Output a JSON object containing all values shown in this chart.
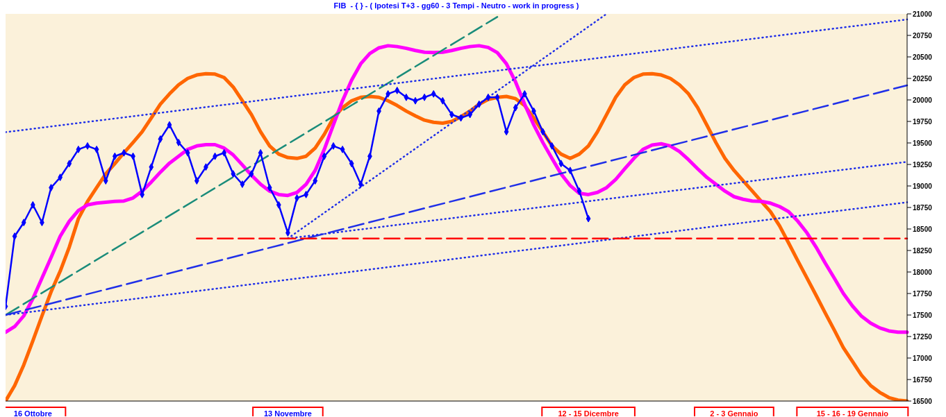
{
  "chart_data": {
    "type": "line",
    "title": "FIB  - { } - ( Ipotesi T+3 - gg60 - 3 Tempi - Neutro - work in progress )",
    "categories": [
      null,
      null,
      null,
      "16 Ottobre",
      null,
      null,
      null,
      null,
      null,
      null,
      null,
      null,
      null,
      null,
      null,
      null,
      null,
      null,
      null,
      null,
      null,
      null,
      null,
      null,
      null,
      null,
      null,
      null,
      null,
      null,
      null,
      "13 Novembre",
      null,
      null,
      null,
      null,
      null,
      null,
      null,
      null,
      null,
      null,
      null,
      null,
      null,
      null,
      null,
      null,
      null,
      null,
      null,
      null,
      null,
      null,
      null,
      null,
      null,
      null,
      null,
      null,
      null,
      null,
      null,
      null,
      "12 - 15 Dicembre",
      null,
      null,
      null,
      null,
      null,
      null,
      null,
      null,
      null,
      null,
      null,
      null,
      null,
      null,
      null,
      "2 - 3 Gennaio",
      null,
      null,
      null,
      null,
      null,
      null,
      null,
      null,
      null,
      null,
      null,
      null,
      "15 - 16 - 19 Gennaio",
      null,
      null,
      null,
      null,
      null,
      null
    ],
    "ylim": [
      16500,
      21000
    ],
    "yticks": [
      16500,
      16750,
      17000,
      17250,
      17500,
      17750,
      18000,
      18250,
      18500,
      18750,
      19000,
      19250,
      19500,
      19750,
      20000,
      20250,
      20500,
      20750,
      21000
    ],
    "grid": false,
    "legend": false,
    "series": [
      {
        "type": "line",
        "color": "#ff6600",
        "line_style": "solid",
        "marker": "none",
        "values": [
          16500,
          16680,
          16920,
          17200,
          17490,
          17770,
          18010,
          18290,
          18620,
          18820,
          18980,
          19140,
          19260,
          19385,
          19505,
          19630,
          19790,
          19950,
          20070,
          20175,
          20250,
          20290,
          20305,
          20300,
          20260,
          20150,
          19990,
          19830,
          19630,
          19465,
          19370,
          19330,
          19320,
          19345,
          19440,
          19600,
          19790,
          19910,
          19990,
          20030,
          20040,
          20030,
          19990,
          19935,
          19870,
          19815,
          19765,
          19740,
          19730,
          19750,
          19805,
          19870,
          19950,
          20005,
          20030,
          20040,
          20015,
          19935,
          19790,
          19630,
          19465,
          19370,
          19320,
          19370,
          19465,
          19630,
          19830,
          20030,
          20175,
          20260,
          20300,
          20305,
          20290,
          20250,
          20175,
          20070,
          19910,
          19710,
          19505,
          19320,
          19180,
          19060,
          18940,
          18820,
          18700,
          18535,
          18335,
          18130,
          17930,
          17730,
          17525,
          17325,
          17120,
          16960,
          16800,
          16680,
          16600,
          16540,
          16510,
          16500
        ]
      },
      {
        "type": "line",
        "color": "#ff00ff",
        "line_style": "solid",
        "marker": "none",
        "values": [
          17300,
          17365,
          17490,
          17690,
          17930,
          18170,
          18415,
          18590,
          18715,
          18780,
          18800,
          18810,
          18820,
          18825,
          18860,
          18940,
          19045,
          19160,
          19265,
          19345,
          19425,
          19465,
          19480,
          19480,
          19440,
          19360,
          19245,
          19125,
          19020,
          18940,
          18900,
          18890,
          18925,
          19020,
          19180,
          19425,
          19710,
          19990,
          20230,
          20420,
          20540,
          20605,
          20630,
          20620,
          20600,
          20575,
          20555,
          20550,
          20555,
          20575,
          20600,
          20620,
          20630,
          20610,
          20550,
          20420,
          20210,
          19950,
          19710,
          19505,
          19320,
          19140,
          19005,
          18915,
          18900,
          18925,
          18980,
          19075,
          19200,
          19320,
          19425,
          19475,
          19490,
          19465,
          19400,
          19305,
          19200,
          19100,
          19020,
          18940,
          18875,
          18845,
          18825,
          18820,
          18800,
          18760,
          18700,
          18590,
          18455,
          18290,
          18105,
          17930,
          17750,
          17605,
          17485,
          17405,
          17350,
          17315,
          17300,
          17300
        ]
      },
      {
        "type": "line",
        "color": "#1a8c7a",
        "line_style": "dashed",
        "marker": "none",
        "values": [
          17500,
          null,
          null,
          null,
          null,
          null,
          null,
          null,
          null,
          null,
          null,
          null,
          null,
          null,
          null,
          null,
          null,
          null,
          null,
          null,
          null,
          null,
          null,
          null,
          null,
          null,
          null,
          null,
          null,
          null,
          null,
          null,
          null,
          null,
          null,
          null,
          null,
          null,
          null,
          null,
          null,
          null,
          null,
          null,
          null,
          null,
          null,
          null,
          null,
          null,
          null,
          null,
          null,
          null,
          20965,
          null,
          null,
          null,
          null,
          null,
          null,
          null,
          null,
          null,
          null,
          null,
          null,
          null,
          null,
          null,
          null,
          null,
          null,
          null,
          null,
          null,
          null,
          null,
          null,
          null,
          null,
          null,
          null,
          null,
          null,
          null,
          null,
          null,
          null,
          null,
          null,
          null,
          null,
          null,
          null,
          null,
          null,
          null,
          null,
          null
        ]
      },
      {
        "type": "line",
        "color": "#1f2fe8",
        "line_style": "dashed",
        "marker": "none",
        "values": [
          17500,
          null,
          null,
          null,
          null,
          null,
          null,
          null,
          null,
          null,
          null,
          null,
          null,
          null,
          null,
          null,
          null,
          null,
          null,
          null,
          null,
          null,
          null,
          null,
          null,
          null,
          null,
          null,
          null,
          null,
          null,
          null,
          null,
          null,
          null,
          null,
          null,
          null,
          null,
          null,
          null,
          null,
          null,
          null,
          null,
          null,
          null,
          null,
          null,
          null,
          null,
          null,
          null,
          null,
          null,
          null,
          null,
          null,
          null,
          null,
          null,
          null,
          null,
          null,
          null,
          null,
          null,
          null,
          null,
          null,
          null,
          null,
          null,
          null,
          null,
          null,
          null,
          null,
          null,
          null,
          null,
          null,
          null,
          null,
          null,
          null,
          null,
          null,
          null,
          null,
          null,
          null,
          null,
          null,
          null,
          null,
          null,
          null,
          null,
          20170
        ]
      },
      {
        "type": "line",
        "color": "#1f2fe8",
        "line_style": "dotted",
        "marker": "none",
        "values": [
          17500,
          null,
          null,
          null,
          null,
          null,
          null,
          null,
          null,
          null,
          null,
          null,
          null,
          null,
          null,
          null,
          null,
          null,
          null,
          null,
          null,
          null,
          null,
          null,
          null,
          null,
          null,
          null,
          null,
          null,
          null,
          null,
          null,
          null,
          null,
          null,
          null,
          null,
          null,
          null,
          null,
          null,
          null,
          null,
          null,
          null,
          null,
          null,
          null,
          null,
          null,
          null,
          null,
          null,
          null,
          null,
          null,
          null,
          null,
          null,
          null,
          null,
          null,
          null,
          null,
          null,
          null,
          null,
          null,
          null,
          null,
          null,
          null,
          null,
          null,
          null,
          null,
          null,
          null,
          null,
          null,
          null,
          null,
          null,
          null,
          null,
          null,
          null,
          null,
          null,
          null,
          null,
          null,
          null,
          null,
          null,
          null,
          null,
          null,
          18810
        ]
      },
      {
        "type": "line",
        "color": "#1f2fe8",
        "line_style": "dotted",
        "marker": "none",
        "values": [
          19625,
          null,
          null,
          null,
          null,
          null,
          null,
          null,
          null,
          null,
          null,
          null,
          null,
          null,
          null,
          null,
          null,
          null,
          null,
          null,
          null,
          null,
          null,
          null,
          null,
          null,
          null,
          null,
          null,
          null,
          null,
          null,
          null,
          null,
          null,
          null,
          null,
          null,
          null,
          null,
          null,
          null,
          null,
          null,
          null,
          null,
          null,
          null,
          null,
          null,
          null,
          null,
          null,
          null,
          null,
          null,
          null,
          null,
          null,
          null,
          null,
          null,
          null,
          null,
          null,
          null,
          null,
          null,
          null,
          null,
          null,
          null,
          null,
          null,
          null,
          null,
          null,
          null,
          null,
          null,
          null,
          null,
          null,
          null,
          null,
          null,
          null,
          null,
          null,
          null,
          null,
          null,
          null,
          null,
          null,
          null,
          null,
          null,
          null,
          20935
        ]
      },
      {
        "type": "line",
        "color": "#1f2fe8",
        "line_style": "dotted",
        "marker": "none",
        "values": [
          null,
          null,
          null,
          null,
          null,
          null,
          null,
          null,
          null,
          null,
          null,
          null,
          null,
          null,
          null,
          null,
          null,
          null,
          null,
          null,
          null,
          null,
          null,
          null,
          null,
          null,
          null,
          null,
          null,
          null,
          null,
          18390,
          null,
          null,
          null,
          null,
          null,
          null,
          null,
          null,
          null,
          null,
          null,
          null,
          null,
          null,
          null,
          null,
          null,
          null,
          null,
          null,
          null,
          null,
          null,
          null,
          null,
          null,
          null,
          null,
          null,
          null,
          null,
          null,
          null,
          null,
          21000,
          null,
          null,
          null,
          null,
          null,
          null,
          null,
          null,
          null,
          null,
          null,
          null,
          null,
          null,
          null,
          null,
          null,
          null,
          null,
          null,
          null,
          null,
          null,
          null,
          null,
          null,
          null,
          null,
          null,
          null,
          null,
          null,
          null
        ]
      },
      {
        "type": "line",
        "color": "#1f2fe8",
        "line_style": "dotted",
        "marker": "none",
        "values": [
          null,
          null,
          null,
          null,
          null,
          null,
          null,
          null,
          null,
          null,
          null,
          null,
          null,
          null,
          null,
          null,
          null,
          null,
          null,
          null,
          null,
          null,
          null,
          null,
          null,
          null,
          null,
          null,
          null,
          null,
          null,
          18390,
          null,
          null,
          null,
          null,
          null,
          null,
          null,
          null,
          null,
          null,
          null,
          null,
          null,
          null,
          null,
          null,
          null,
          null,
          null,
          null,
          null,
          null,
          null,
          null,
          null,
          null,
          null,
          null,
          null,
          null,
          null,
          null,
          null,
          null,
          null,
          null,
          null,
          null,
          null,
          null,
          null,
          null,
          null,
          null,
          null,
          null,
          null,
          null,
          null,
          null,
          null,
          null,
          null,
          null,
          null,
          null,
          null,
          null,
          null,
          null,
          null,
          null,
          null,
          null,
          null,
          null,
          null,
          19280
        ]
      },
      {
        "type": "line",
        "color": "#ff0000",
        "line_style": "dashed",
        "marker": "none",
        "values": [
          null,
          null,
          null,
          null,
          null,
          null,
          null,
          null,
          null,
          null,
          null,
          null,
          null,
          null,
          null,
          null,
          null,
          null,
          null,
          null,
          null,
          18390,
          null,
          null,
          null,
          null,
          null,
          null,
          null,
          null,
          null,
          null,
          null,
          null,
          null,
          null,
          null,
          null,
          null,
          null,
          null,
          null,
          null,
          null,
          null,
          null,
          null,
          null,
          null,
          null,
          null,
          null,
          null,
          null,
          null,
          null,
          null,
          null,
          null,
          null,
          null,
          null,
          null,
          null,
          null,
          null,
          null,
          null,
          null,
          null,
          null,
          null,
          null,
          null,
          null,
          null,
          null,
          null,
          null,
          null,
          null,
          null,
          null,
          null,
          null,
          null,
          null,
          null,
          null,
          null,
          null,
          null,
          null,
          null,
          null,
          null,
          null,
          null,
          null,
          18390
        ]
      },
      {
        "type": "line",
        "color": "#0000ff",
        "line_style": "solid",
        "marker": "diamond",
        "values": [
          17600,
          18415,
          18575,
          18780,
          18575,
          18980,
          19100,
          19260,
          19425,
          19465,
          19425,
          19060,
          19345,
          19385,
          19345,
          18900,
          19220,
          19545,
          19710,
          19505,
          19385,
          19060,
          19220,
          19345,
          19385,
          19140,
          19020,
          19140,
          19385,
          18980,
          18780,
          18455,
          18860,
          18900,
          19060,
          19345,
          19465,
          19425,
          19260,
          19020,
          19345,
          19870,
          20070,
          20110,
          20030,
          19990,
          20030,
          20070,
          19990,
          19830,
          19790,
          19830,
          19950,
          20030,
          20030,
          19630,
          19910,
          20070,
          19870,
          19630,
          19465,
          19260,
          19180,
          18940,
          18620,
          null,
          null,
          null,
          null,
          null,
          null,
          null,
          null,
          null,
          null,
          null,
          null,
          null,
          null,
          null,
          null,
          null,
          null,
          null,
          null,
          null,
          null,
          null,
          null,
          null,
          null,
          null,
          null,
          null,
          null,
          null,
          null,
          null,
          null,
          null
        ]
      }
    ]
  }
}
